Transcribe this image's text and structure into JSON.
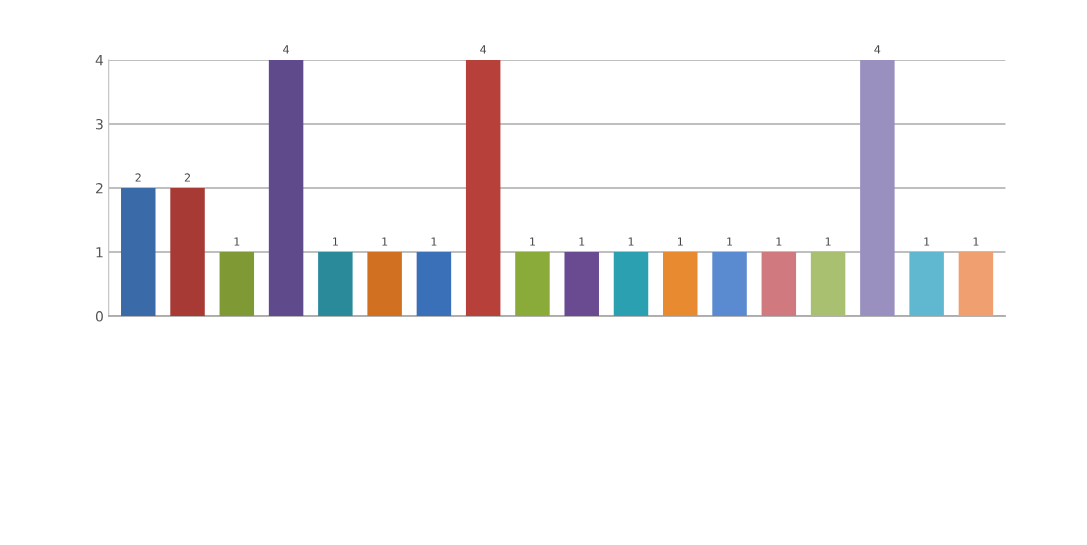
{
  "chart_data": {
    "type": "bar",
    "categories": [
      null,
      null,
      null,
      null,
      null,
      null,
      null,
      null,
      null,
      null,
      null,
      null,
      null,
      null,
      null,
      null,
      null,
      null
    ],
    "values": [
      2,
      2,
      1,
      4,
      1,
      1,
      1,
      4,
      1,
      1,
      1,
      1,
      1,
      1,
      1,
      4,
      1,
      1
    ],
    "colors": [
      "#3a6aa8",
      "#a83a36",
      "#7f9a35",
      "#5f4a8b",
      "#2a8a9a",
      "#d07020",
      "#3a70b8",
      "#b8403a",
      "#8aaa3a",
      "#6a4a90",
      "#2aa0b0",
      "#e88a30",
      "#5a8ad0",
      "#d07a80",
      "#a8c070",
      "#9a90c0",
      "#60b8d0",
      "#f0a070"
    ],
    "ylim": [
      0,
      4
    ],
    "yticks": [
      0,
      1,
      2,
      3,
      4
    ],
    "grid": "y",
    "data_labels": true
  }
}
